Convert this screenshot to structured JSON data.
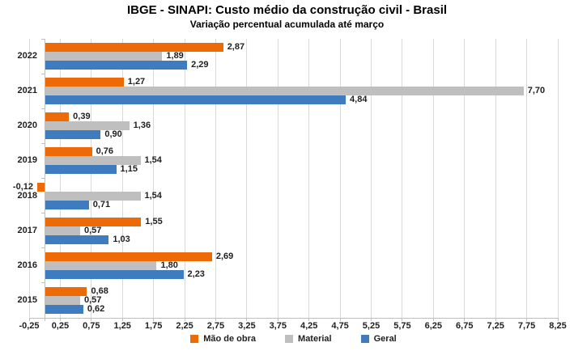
{
  "chart_data": {
    "type": "bar",
    "orientation": "horizontal",
    "title": "IBGE - SINAPI: Custo médio da construção civil - Brasil",
    "subtitle": "Variação percentual acumulada até março",
    "categories": [
      "2022",
      "2021",
      "2020",
      "2019",
      "2018",
      "2017",
      "2016",
      "2015"
    ],
    "series": [
      {
        "name": "Mão de obra",
        "color": "#ED6B06",
        "values": [
          2.87,
          1.27,
          0.39,
          0.76,
          -0.12,
          1.55,
          2.69,
          0.68
        ],
        "labels": [
          "2,87",
          "1,27",
          "0,39",
          "0,76",
          "-0,12",
          "1,55",
          "2,69",
          "0,68"
        ]
      },
      {
        "name": "Material",
        "color": "#BFBFBF",
        "values": [
          1.89,
          7.7,
          1.36,
          1.54,
          1.54,
          0.57,
          1.8,
          0.57
        ],
        "labels": [
          "1,89",
          "7,70",
          "1,36",
          "1,54",
          "1,54",
          "0,57",
          "1,80",
          "0,57"
        ]
      },
      {
        "name": "Geral",
        "color": "#3E7CBF",
        "values": [
          2.29,
          4.84,
          0.9,
          1.15,
          0.71,
          1.03,
          2.23,
          0.62
        ],
        "labels": [
          "2,29",
          "4,84",
          "0,90",
          "1,15",
          "0,71",
          "1,03",
          "2,23",
          "0,62"
        ]
      }
    ],
    "xlim": [
      -0.25,
      8.25
    ],
    "x_ticks": [
      {
        "v": -0.25,
        "label": "-0,25"
      },
      {
        "v": 0.25,
        "label": "0,25"
      },
      {
        "v": 0.75,
        "label": "0,75"
      },
      {
        "v": 1.25,
        "label": "1,25"
      },
      {
        "v": 1.75,
        "label": "1,75"
      },
      {
        "v": 2.25,
        "label": "2,25"
      },
      {
        "v": 2.75,
        "label": "2,75"
      },
      {
        "v": 3.25,
        "label": "3,25"
      },
      {
        "v": 3.75,
        "label": "3,75"
      },
      {
        "v": 4.25,
        "label": "4,25"
      },
      {
        "v": 4.75,
        "label": "4,75"
      },
      {
        "v": 5.25,
        "label": "5,25"
      },
      {
        "v": 5.75,
        "label": "5,75"
      },
      {
        "v": 6.25,
        "label": "6,25"
      },
      {
        "v": 6.75,
        "label": "6,75"
      },
      {
        "v": 7.25,
        "label": "7,25"
      },
      {
        "v": 7.75,
        "label": "7,75"
      },
      {
        "v": 8.25,
        "label": "8,25"
      }
    ],
    "axis_style": {
      "grid_color": "#D9D9D9",
      "line_color": "#BFBFBF",
      "text_color": "#1F1F1F"
    },
    "legend_position": "bottom",
    "grid": true
  }
}
